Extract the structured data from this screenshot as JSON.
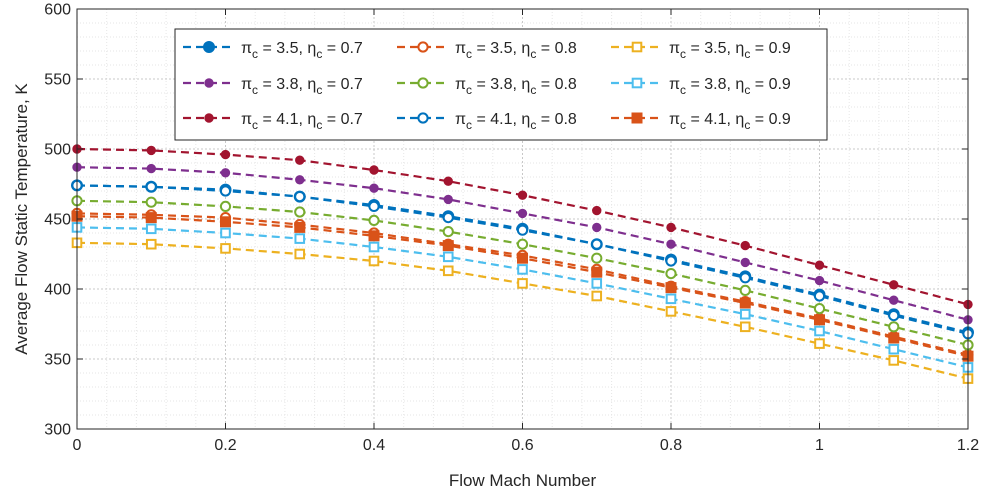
{
  "chart_data": {
    "type": "line",
    "title": "",
    "xlabel": "Flow Mach Number",
    "ylabel": "Average Flow Static Temperature, K",
    "xlim": [
      0,
      1.2
    ],
    "ylim": [
      300,
      600
    ],
    "xticks": [
      0,
      0.2,
      0.4,
      0.6,
      0.8,
      1,
      1.2
    ],
    "xtick_labels": [
      "0",
      "0.2",
      "0.4",
      "0.6",
      "0.8",
      "1",
      "1.2"
    ],
    "yticks": [
      300,
      350,
      400,
      450,
      500,
      550,
      600
    ],
    "ytick_labels": [
      "300",
      "350",
      "400",
      "450",
      "500",
      "550",
      "600"
    ],
    "grid": "major and minor, dotted",
    "legend_position": "top, inside plot, 3 columns",
    "x": [
      0,
      0.1,
      0.2,
      0.3,
      0.4,
      0.5,
      0.6,
      0.7,
      0.8,
      0.9,
      1.0,
      1.1,
      1.2
    ],
    "series": [
      {
        "pi_c": "3.5",
        "eta_c": "0.7",
        "color": "#0072BD",
        "marker": "filled-circle",
        "values": [
          474,
          473,
          471,
          466,
          460,
          452,
          443,
          432,
          421,
          409,
          396,
          382,
          369
        ]
      },
      {
        "pi_c": "3.8",
        "eta_c": "0.7",
        "color": "#7E2F8E",
        "marker": "filled-circle-small",
        "values": [
          487,
          486,
          483,
          478,
          472,
          464,
          454,
          444,
          432,
          419,
          406,
          392,
          378
        ]
      },
      {
        "pi_c": "4.1",
        "eta_c": "0.7",
        "color": "#A2142F",
        "marker": "filled-circle-small",
        "values": [
          500,
          499,
          496,
          492,
          485,
          477,
          467,
          456,
          444,
          431,
          417,
          403,
          389
        ]
      },
      {
        "pi_c": "3.5",
        "eta_c": "0.8",
        "color": "#D95319",
        "marker": "open-circle",
        "values": [
          454,
          453,
          451,
          446,
          440,
          432,
          424,
          414,
          402,
          391,
          379,
          366,
          353
        ]
      },
      {
        "pi_c": "3.8",
        "eta_c": "0.8",
        "color": "#77AC30",
        "marker": "open-circle",
        "values": [
          463,
          462,
          459,
          455,
          449,
          441,
          432,
          422,
          411,
          399,
          386,
          373,
          360
        ]
      },
      {
        "pi_c": "4.1",
        "eta_c": "0.8",
        "color": "#0072BD",
        "marker": "open-circle",
        "values": [
          474,
          473,
          470,
          466,
          459,
          451,
          442,
          432,
          420,
          408,
          395,
          381,
          368
        ]
      },
      {
        "pi_c": "3.5",
        "eta_c": "0.9",
        "color": "#EDB120",
        "marker": "open-square",
        "values": [
          433,
          432,
          429,
          425,
          420,
          413,
          404,
          395,
          384,
          373,
          361,
          349,
          336
        ]
      },
      {
        "pi_c": "3.8",
        "eta_c": "0.9",
        "color": "#4DBEEE",
        "marker": "open-square",
        "values": [
          444,
          443,
          440,
          436,
          430,
          423,
          414,
          404,
          393,
          382,
          370,
          357,
          344
        ]
      },
      {
        "pi_c": "4.1",
        "eta_c": "0.9",
        "color": "#D95319",
        "marker": "filled-square",
        "values": [
          452,
          451,
          448,
          444,
          438,
          431,
          422,
          412,
          401,
          390,
          378,
          365,
          352
        ]
      }
    ],
    "legend_symbols": {
      "pi": "π",
      "eta": "η",
      "sub": "c",
      "sep": ", ",
      "eq": " = "
    }
  }
}
